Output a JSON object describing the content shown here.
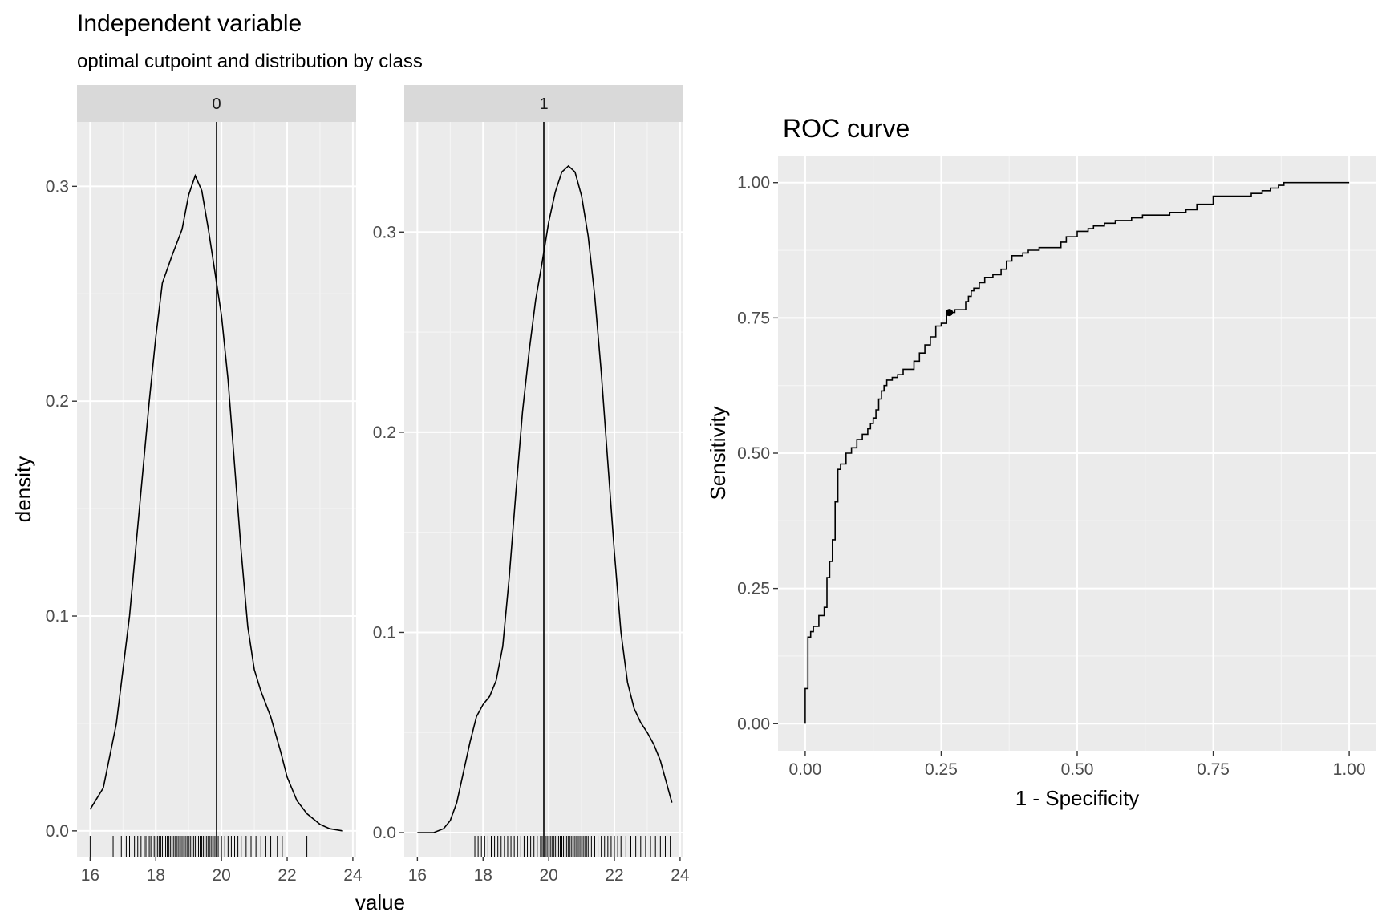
{
  "colors": {
    "panel_bg": "#ebebeb",
    "grid_major": "#ffffff",
    "grid_minor": "#f5f5f5",
    "strip_bg": "#d9d9d9",
    "line": "#000000",
    "tick_text": "#4d4d4d"
  },
  "chart_data": [
    {
      "type": "area",
      "title": "Independent variable",
      "subtitle": "optimal cutpoint and distribution by class",
      "xlabel": "value",
      "ylabel": "density",
      "cutpoint": 19.85,
      "x_ticks": [
        "16",
        "18",
        "20",
        "22",
        "24"
      ],
      "xlim": [
        15.6,
        24.1
      ],
      "panels": [
        {
          "class": "0",
          "ylim": [
            -0.012,
            0.33
          ],
          "y_ticks": [
            "0.0",
            "0.1",
            "0.2",
            "0.3"
          ],
          "density": {
            "x": [
              16.0,
              16.4,
              16.8,
              17.2,
              17.5,
              17.8,
              18.0,
              18.2,
              18.5,
              18.8,
              19.0,
              19.2,
              19.4,
              19.6,
              19.8,
              20.0,
              20.2,
              20.4,
              20.6,
              20.8,
              21.0,
              21.2,
              21.5,
              21.8,
              22.0,
              22.3,
              22.6,
              23.0,
              23.3,
              23.7
            ],
            "y": [
              0.01,
              0.02,
              0.05,
              0.1,
              0.15,
              0.2,
              0.23,
              0.255,
              0.268,
              0.28,
              0.296,
              0.305,
              0.298,
              0.28,
              0.26,
              0.24,
              0.21,
              0.17,
              0.13,
              0.095,
              0.075,
              0.065,
              0.053,
              0.037,
              0.025,
              0.014,
              0.008,
              0.003,
              0.001,
              0.0
            ]
          },
          "rug": [
            16.0,
            16.7,
            16.95,
            17.1,
            17.2,
            17.35,
            17.45,
            17.55,
            17.65,
            17.7,
            17.8,
            17.85,
            17.95,
            18.0,
            18.05,
            18.1,
            18.15,
            18.2,
            18.25,
            18.3,
            18.35,
            18.4,
            18.45,
            18.5,
            18.55,
            18.6,
            18.65,
            18.7,
            18.75,
            18.8,
            18.85,
            18.9,
            18.95,
            19.0,
            19.05,
            19.1,
            19.15,
            19.2,
            19.25,
            19.3,
            19.35,
            19.4,
            19.45,
            19.5,
            19.55,
            19.6,
            19.65,
            19.7,
            19.75,
            19.8,
            19.9,
            20.0,
            20.1,
            20.2,
            20.3,
            20.4,
            20.5,
            20.6,
            20.75,
            20.9,
            21.05,
            21.2,
            21.35,
            21.5,
            21.7,
            21.85,
            22.6
          ]
        },
        {
          "class": "1",
          "ylim": [
            -0.012,
            0.355
          ],
          "y_ticks": [
            "0.0",
            "0.1",
            "0.2",
            "0.3"
          ],
          "density": {
            "x": [
              16.0,
              16.5,
              16.8,
              17.0,
              17.2,
              17.4,
              17.6,
              17.8,
              18.0,
              18.2,
              18.4,
              18.6,
              18.8,
              19.0,
              19.2,
              19.4,
              19.6,
              19.8,
              20.0,
              20.2,
              20.4,
              20.6,
              20.8,
              21.0,
              21.2,
              21.4,
              21.6,
              21.8,
              22.0,
              22.2,
              22.4,
              22.6,
              22.8,
              23.0,
              23.2,
              23.4,
              23.6,
              23.75
            ],
            "y": [
              0.0,
              0.0,
              0.002,
              0.006,
              0.015,
              0.03,
              0.045,
              0.058,
              0.064,
              0.068,
              0.076,
              0.093,
              0.128,
              0.17,
              0.21,
              0.24,
              0.266,
              0.285,
              0.305,
              0.32,
              0.33,
              0.333,
              0.33,
              0.318,
              0.298,
              0.268,
              0.23,
              0.185,
              0.14,
              0.1,
              0.075,
              0.062,
              0.055,
              0.05,
              0.044,
              0.036,
              0.024,
              0.015
            ]
          },
          "rug": [
            17.75,
            17.85,
            17.95,
            18.05,
            18.15,
            18.25,
            18.35,
            18.45,
            18.55,
            18.65,
            18.75,
            18.85,
            18.95,
            19.05,
            19.15,
            19.25,
            19.35,
            19.45,
            19.55,
            19.65,
            19.75,
            19.8,
            19.9,
            19.95,
            20.0,
            20.05,
            20.1,
            20.15,
            20.2,
            20.25,
            20.3,
            20.35,
            20.4,
            20.45,
            20.5,
            20.55,
            20.6,
            20.65,
            20.7,
            20.75,
            20.8,
            20.85,
            20.9,
            20.95,
            21.0,
            21.05,
            21.1,
            21.15,
            21.2,
            21.3,
            21.4,
            21.5,
            21.6,
            21.7,
            21.8,
            21.9,
            22.0,
            22.1,
            22.2,
            22.35,
            22.5,
            22.65,
            22.8,
            22.95,
            23.1,
            23.25,
            23.4,
            23.55,
            23.7
          ]
        }
      ]
    },
    {
      "type": "line",
      "title": "ROC curve",
      "xlabel": "1 - Specificity",
      "ylabel": "Sensitivity",
      "xlim": [
        -0.05,
        1.05
      ],
      "ylim": [
        -0.05,
        1.05
      ],
      "x_ticks": [
        "0.00",
        "0.25",
        "0.50",
        "0.75",
        "1.00"
      ],
      "y_ticks": [
        "0.00",
        "0.25",
        "0.50",
        "0.75",
        "1.00"
      ],
      "optimal_point": {
        "x": 0.265,
        "y": 0.76
      },
      "x": [
        0.0,
        0.0,
        0.005,
        0.005,
        0.01,
        0.01,
        0.015,
        0.015,
        0.025,
        0.025,
        0.035,
        0.035,
        0.04,
        0.04,
        0.045,
        0.045,
        0.05,
        0.05,
        0.055,
        0.055,
        0.06,
        0.06,
        0.065,
        0.065,
        0.075,
        0.075,
        0.085,
        0.085,
        0.095,
        0.095,
        0.105,
        0.105,
        0.115,
        0.115,
        0.12,
        0.12,
        0.125,
        0.125,
        0.13,
        0.13,
        0.135,
        0.135,
        0.14,
        0.14,
        0.145,
        0.145,
        0.15,
        0.15,
        0.16,
        0.16,
        0.17,
        0.17,
        0.18,
        0.18,
        0.2,
        0.2,
        0.21,
        0.21,
        0.22,
        0.22,
        0.23,
        0.23,
        0.24,
        0.24,
        0.25,
        0.25,
        0.26,
        0.26,
        0.265,
        0.265,
        0.275,
        0.275,
        0.295,
        0.295,
        0.3,
        0.3,
        0.305,
        0.305,
        0.31,
        0.31,
        0.32,
        0.32,
        0.33,
        0.33,
        0.345,
        0.345,
        0.36,
        0.36,
        0.37,
        0.37,
        0.38,
        0.38,
        0.4,
        0.4,
        0.41,
        0.41,
        0.43,
        0.43,
        0.47,
        0.47,
        0.48,
        0.48,
        0.5,
        0.5,
        0.52,
        0.52,
        0.53,
        0.53,
        0.55,
        0.55,
        0.57,
        0.57,
        0.6,
        0.6,
        0.62,
        0.62,
        0.67,
        0.67,
        0.7,
        0.7,
        0.72,
        0.72,
        0.75,
        0.75,
        0.82,
        0.82,
        0.84,
        0.84,
        0.855,
        0.855,
        0.87,
        0.87,
        0.88,
        0.88,
        0.9,
        1.0
      ],
      "y": [
        0.0,
        0.065,
        0.065,
        0.16,
        0.16,
        0.17,
        0.17,
        0.18,
        0.18,
        0.2,
        0.2,
        0.215,
        0.215,
        0.27,
        0.27,
        0.3,
        0.3,
        0.34,
        0.34,
        0.41,
        0.41,
        0.47,
        0.47,
        0.48,
        0.48,
        0.5,
        0.5,
        0.51,
        0.51,
        0.525,
        0.525,
        0.535,
        0.535,
        0.545,
        0.545,
        0.555,
        0.555,
        0.565,
        0.565,
        0.58,
        0.58,
        0.6,
        0.6,
        0.615,
        0.615,
        0.625,
        0.625,
        0.635,
        0.635,
        0.64,
        0.64,
        0.645,
        0.645,
        0.655,
        0.655,
        0.67,
        0.67,
        0.685,
        0.685,
        0.7,
        0.7,
        0.715,
        0.715,
        0.735,
        0.735,
        0.74,
        0.74,
        0.755,
        0.755,
        0.76,
        0.76,
        0.765,
        0.765,
        0.78,
        0.78,
        0.79,
        0.79,
        0.8,
        0.8,
        0.805,
        0.805,
        0.815,
        0.815,
        0.825,
        0.825,
        0.83,
        0.83,
        0.84,
        0.84,
        0.855,
        0.855,
        0.865,
        0.865,
        0.87,
        0.87,
        0.875,
        0.875,
        0.88,
        0.88,
        0.89,
        0.89,
        0.9,
        0.9,
        0.91,
        0.91,
        0.915,
        0.915,
        0.92,
        0.92,
        0.925,
        0.925,
        0.93,
        0.93,
        0.935,
        0.935,
        0.94,
        0.94,
        0.945,
        0.945,
        0.95,
        0.95,
        0.96,
        0.96,
        0.975,
        0.975,
        0.98,
        0.98,
        0.985,
        0.985,
        0.99,
        0.99,
        0.995,
        0.995,
        1.0,
        1.0,
        1.0
      ]
    }
  ]
}
